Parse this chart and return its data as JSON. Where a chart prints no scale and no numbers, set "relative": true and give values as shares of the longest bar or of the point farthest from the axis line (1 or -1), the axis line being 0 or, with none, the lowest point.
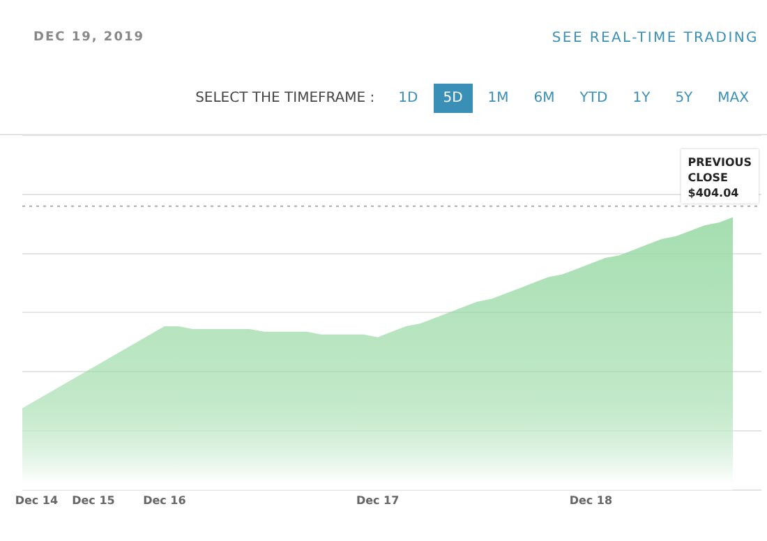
{
  "chart_data": {
    "type": "area",
    "subtitle": "DEC 19, 2019",
    "annotations": [
      "SEE REAL-TIME TRADING",
      "SELECT THE TIMEFRAME :",
      "1D",
      "5D",
      "1M",
      "6M",
      "YTD",
      "1Y",
      "5Y",
      "MAX"
    ],
    "categories": [
      null,
      "Dec 14",
      null,
      null,
      null,
      "Dec 15",
      null,
      null,
      null,
      null,
      "Dec 16",
      null,
      null,
      null,
      null,
      null,
      null,
      null,
      null,
      null,
      null,
      null,
      null,
      null,
      null,
      "Dec 17",
      null,
      null,
      null,
      null,
      null,
      null,
      null,
      null,
      null,
      null,
      null,
      null,
      null,
      null,
      "Dec 18",
      null,
      null,
      null,
      null,
      null,
      null,
      null,
      null,
      null,
      null,
      null,
      null
    ],
    "relative": true,
    "series": [
      {
        "color": "#98d9a4",
        "values": [
          0.3,
          0.33,
          0.36,
          0.39,
          0.42,
          0.45,
          0.48,
          0.51,
          0.54,
          0.57,
          0.6,
          0.6,
          0.59,
          0.59,
          0.59,
          0.59,
          0.59,
          0.58,
          0.58,
          0.58,
          0.58,
          0.57,
          0.57,
          0.57,
          0.57,
          0.56,
          0.58,
          0.6,
          0.61,
          0.63,
          0.65,
          0.67,
          0.69,
          0.7,
          0.72,
          0.74,
          0.76,
          0.78,
          0.79,
          0.81,
          0.83,
          0.85,
          0.86,
          0.88,
          0.9,
          0.92,
          0.93,
          0.95,
          0.97,
          0.98,
          1.0,
          null,
          null
        ]
      }
    ],
    "ref_lines": [
      {
        "axis": "y",
        "value": 1.04,
        "label": "PREVIOUS CLOSE $404.04",
        "color": "#aaaaaa",
        "line_style": "dotted"
      }
    ],
    "grid": "y",
    "legend": false
  }
}
